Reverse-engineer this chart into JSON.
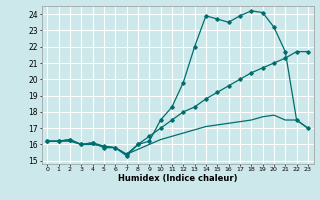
{
  "xlabel": "Humidex (Indice chaleur)",
  "background_color": "#cde8ea",
  "grid_color": "#ffffff",
  "line_color": "#006e6e",
  "ylim": [
    14.8,
    24.5
  ],
  "xlim": [
    -0.5,
    23.5
  ],
  "yticks": [
    15,
    16,
    17,
    18,
    19,
    20,
    21,
    22,
    23,
    24
  ],
  "xticks": [
    0,
    1,
    2,
    3,
    4,
    5,
    6,
    7,
    8,
    9,
    10,
    11,
    12,
    13,
    14,
    15,
    16,
    17,
    18,
    19,
    20,
    21,
    22,
    23
  ],
  "xtick_labels": [
    "0",
    "1",
    "2",
    "3",
    "4",
    "5",
    "6",
    "7",
    "8",
    "9",
    "10",
    "11",
    "12",
    "13",
    "14",
    "15",
    "16",
    "17",
    "18",
    "19",
    "20",
    "21",
    "22",
    "23"
  ],
  "series1_x": [
    0,
    1,
    2,
    3,
    4,
    5,
    6,
    7,
    8,
    9,
    10,
    11,
    12,
    13,
    14,
    15,
    16,
    17,
    18,
    19,
    20,
    21,
    22,
    23
  ],
  "series1_y": [
    16.2,
    16.2,
    16.3,
    16.0,
    16.1,
    15.8,
    15.8,
    15.3,
    16.0,
    16.2,
    17.5,
    18.3,
    19.8,
    22.0,
    23.9,
    23.7,
    23.5,
    23.9,
    24.2,
    24.1,
    23.2,
    21.7,
    17.5,
    17.0
  ],
  "series2_x": [
    0,
    1,
    2,
    3,
    4,
    5,
    6,
    7,
    8,
    9,
    10,
    11,
    12,
    13,
    14,
    15,
    16,
    17,
    18,
    19,
    20,
    21,
    22,
    23
  ],
  "series2_y": [
    16.2,
    16.2,
    16.3,
    16.0,
    16.1,
    15.9,
    15.8,
    15.4,
    16.0,
    16.5,
    17.0,
    17.5,
    18.0,
    18.3,
    18.8,
    19.2,
    19.6,
    20.0,
    20.4,
    20.7,
    21.0,
    21.3,
    21.7,
    21.7
  ],
  "series3_x": [
    0,
    1,
    2,
    3,
    4,
    5,
    6,
    7,
    8,
    9,
    10,
    11,
    12,
    13,
    14,
    15,
    16,
    17,
    18,
    19,
    20,
    21,
    22,
    23
  ],
  "series3_y": [
    16.2,
    16.2,
    16.2,
    16.0,
    16.0,
    15.9,
    15.8,
    15.4,
    15.7,
    16.0,
    16.3,
    16.5,
    16.7,
    16.9,
    17.1,
    17.2,
    17.3,
    17.4,
    17.5,
    17.7,
    17.8,
    17.5,
    17.5,
    17.0
  ]
}
